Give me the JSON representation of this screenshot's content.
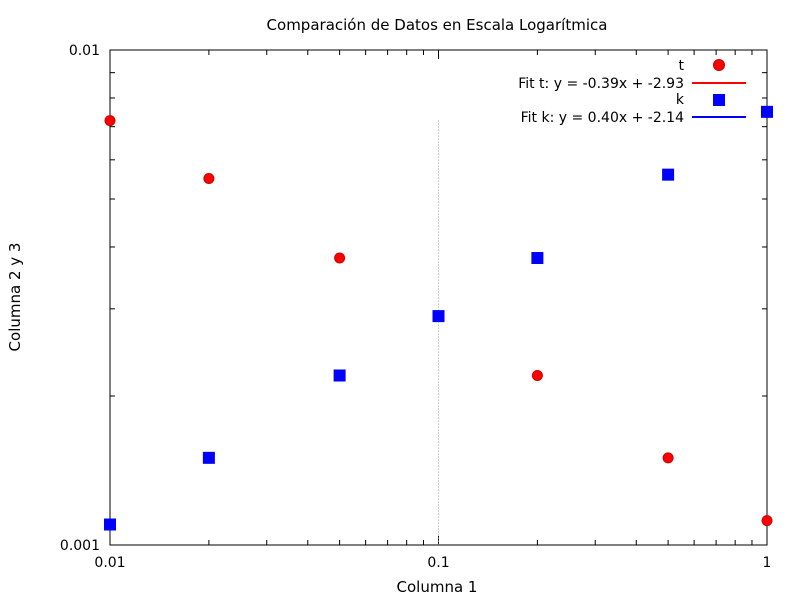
{
  "chart_data": {
    "type": "scatter",
    "title": "Comparación de Datos en Escala Logarítmica",
    "xlabel": "Columna 1",
    "ylabel": "Columna 2 y 3",
    "x_scale": "log",
    "y_scale": "log",
    "xlim": [
      0.01,
      1
    ],
    "ylim": [
      0.001,
      0.01
    ],
    "x_ticks": [
      {
        "value": 0.01,
        "label": "0.01"
      },
      {
        "value": 0.1,
        "label": "0.1"
      },
      {
        "value": 1,
        "label": "1"
      }
    ],
    "y_ticks": [
      {
        "value": 0.001,
        "label": "0.001"
      },
      {
        "value": 0.01,
        "label": "0.01"
      }
    ],
    "grid": false,
    "legend_position": "top-right",
    "reference_line": {
      "x": 0.1,
      "style": "dotted",
      "color": "#a0a0a0",
      "y_top": 0.0072
    },
    "series": [
      {
        "name": "t",
        "marker": "circle",
        "color": "#ff0000",
        "x": [
          0.01,
          0.02,
          0.05,
          0.2,
          0.5,
          1.0
        ],
        "y": [
          0.0072,
          0.0055,
          0.0038,
          0.0022,
          0.0015,
          0.00112
        ]
      },
      {
        "name": "k",
        "marker": "square",
        "color": "#0000ff",
        "x": [
          0.01,
          0.02,
          0.05,
          0.1,
          0.2,
          0.5,
          1.0
        ],
        "y": [
          0.0011,
          0.0015,
          0.0022,
          0.0029,
          0.0038,
          0.0056,
          0.0075
        ]
      }
    ],
    "fits": [
      {
        "name": "Fit t: y = -0.39x + -2.93",
        "color": "#ff0000"
      },
      {
        "name": "Fit k: y = 0.40x + -2.14",
        "color": "#0000ff"
      }
    ]
  }
}
